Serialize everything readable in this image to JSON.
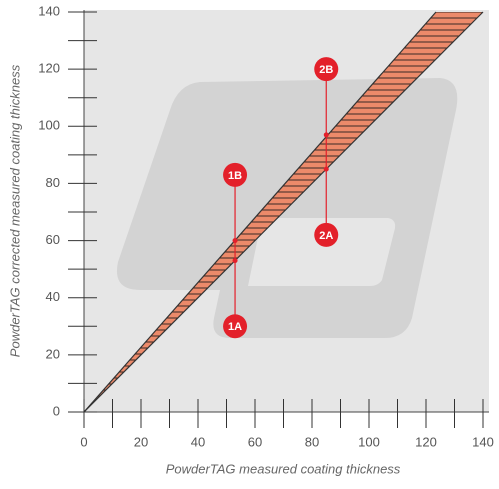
{
  "chart_data": {
    "type": "band",
    "x_label": "PowderTAG measured coating thickness",
    "y_label": "PowderTAG corrected measured coating thickness",
    "xlim": [
      0,
      140
    ],
    "ylim": [
      0,
      140
    ],
    "xticks": [
      0,
      20,
      40,
      60,
      80,
      100,
      120,
      140
    ],
    "yticks": [
      0,
      20,
      40,
      60,
      80,
      100,
      120,
      140
    ],
    "xminor": [
      10,
      30,
      50,
      70,
      90,
      110,
      130
    ],
    "yminor": [
      10,
      30,
      50,
      70,
      90,
      110,
      130
    ],
    "band": {
      "color": "#ec8a6a",
      "hatch": "#3a2a25",
      "lower": {
        "x": [
          0,
          140
        ],
        "y": [
          0,
          140
        ]
      },
      "upper": {
        "x": [
          0,
          123.5
        ],
        "y": [
          0,
          140
        ]
      }
    },
    "marker_color": "#e3202a",
    "annotations": [
      {
        "label": "1A",
        "x": 53,
        "y": 30
      },
      {
        "label": "1B",
        "x": 53,
        "y": 83
      },
      {
        "label": "2A",
        "x": 85,
        "y": 62
      },
      {
        "label": "2B",
        "x": 85,
        "y": 120
      }
    ],
    "dots": {
      "x": [
        53,
        53,
        85,
        85
      ],
      "y": [
        53,
        60,
        85,
        97
      ]
    }
  }
}
